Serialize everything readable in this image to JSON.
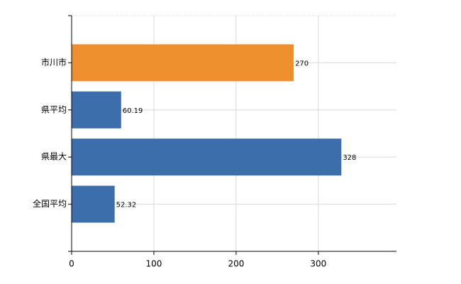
{
  "chart_data": {
    "type": "bar",
    "orientation": "horizontal",
    "categories": [
      "市川市",
      "県平均",
      "県最大",
      "全国平均"
    ],
    "values": [
      270,
      60.19,
      328,
      52.32
    ],
    "colors": [
      "#ed8f2e",
      "#3b6eaa",
      "#3b6eaa",
      "#3b6eaa"
    ],
    "xlim": [
      0,
      395
    ],
    "xticks": [
      0,
      100,
      200,
      300
    ],
    "grid": true
  }
}
